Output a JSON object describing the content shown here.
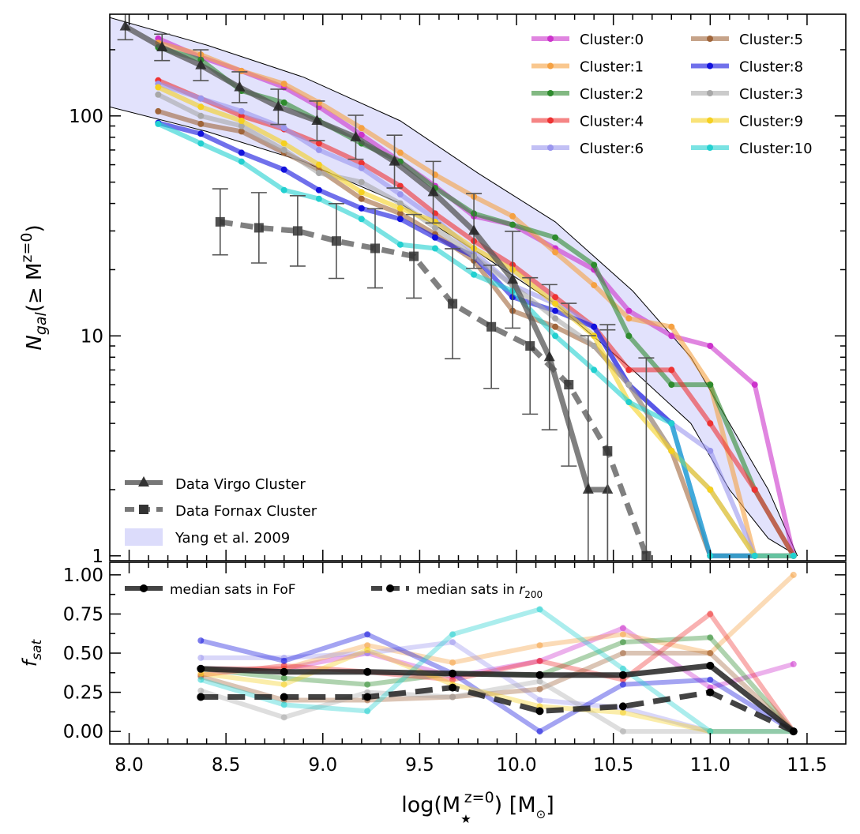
{
  "figure": {
    "shared_xlabel_prefix": "log(M",
    "shared_xlabel_super": "z=0",
    "shared_xlabel_unit": ") [M",
    "shared_xlabel_unit_end": "]"
  },
  "chart_data": [
    {
      "type": "line",
      "panel": "top",
      "ylabel_main": "N",
      "ylabel_sub": "gal",
      "ylabel_rest": "(≥ M",
      "ylabel_super": "z=0",
      "yscale": "log",
      "xlim": [
        7.9,
        11.7
      ],
      "ylim": [
        0.95,
        290
      ],
      "ytick_labels": [
        {
          "v": 1,
          "label": "1"
        },
        {
          "v": 10,
          "label": "10"
        },
        {
          "v": 100,
          "label": "100"
        }
      ],
      "series": [
        {
          "name": "Cluster:0",
          "color": "#cc33cc",
          "x": [
            8.15,
            8.37,
            8.58,
            8.8,
            8.98,
            9.2,
            9.4,
            9.58,
            9.78,
            9.98,
            10.2,
            10.4,
            10.58,
            10.8,
            11.0,
            11.23,
            11.43
          ],
          "y": [
            225,
            185,
            160,
            135,
            110,
            82,
            62,
            48,
            35,
            32,
            25,
            20,
            13,
            10,
            9,
            6,
            1
          ]
        },
        {
          "name": "Cluster:1",
          "color": "#f5a142",
          "x": [
            8.15,
            8.37,
            8.58,
            8.8,
            8.98,
            9.2,
            9.4,
            9.58,
            9.78,
            9.98,
            10.2,
            10.4,
            10.58,
            10.8,
            11.0,
            11.23,
            11.43
          ],
          "y": [
            215,
            190,
            160,
            140,
            115,
            88,
            68,
            54,
            43,
            35,
            24,
            17,
            12,
            11,
            6,
            1,
            1
          ]
        },
        {
          "name": "Cluster:2",
          "color": "#2e8b2e",
          "x": [
            8.15,
            8.37,
            8.58,
            8.8,
            8.98,
            9.2,
            9.4,
            9.58,
            9.78,
            9.98,
            10.2,
            10.4,
            10.58,
            10.8,
            11.0,
            11.23,
            11.43
          ],
          "y": [
            205,
            180,
            130,
            115,
            95,
            75,
            62,
            47,
            36,
            32,
            28,
            21,
            10,
            6,
            6,
            2,
            1
          ]
        },
        {
          "name": "Cluster:4",
          "color": "#ee3333",
          "x": [
            8.15,
            8.37,
            8.58,
            8.8,
            8.98,
            9.2,
            9.4,
            9.58,
            9.78,
            9.98,
            10.2,
            10.4,
            10.58,
            10.8,
            11.0,
            11.23,
            11.43
          ],
          "y": [
            145,
            120,
            100,
            87,
            75,
            61,
            48,
            36,
            27,
            21,
            15,
            11,
            7,
            7,
            4,
            2,
            1
          ]
        },
        {
          "name": "Cluster:6",
          "color": "#9a96ee",
          "x": [
            8.15,
            8.37,
            8.58,
            8.8,
            8.98,
            9.2,
            9.4,
            9.58,
            9.78,
            9.98,
            10.2,
            10.4,
            10.58,
            10.8,
            11.0,
            11.23,
            11.43
          ],
          "y": [
            140,
            120,
            105,
            88,
            70,
            58,
            44,
            34,
            24,
            17,
            14,
            11,
            6,
            4,
            3,
            1,
            1
          ]
        },
        {
          "name": "Cluster:5",
          "color": "#a0653a",
          "x": [
            8.15,
            8.37,
            8.58,
            8.8,
            8.98,
            9.2,
            9.4,
            9.58,
            9.78,
            9.98,
            10.2,
            10.4,
            10.58,
            10.8,
            11.0,
            11.23,
            11.43
          ],
          "y": [
            105,
            92,
            85,
            68,
            57,
            42,
            36,
            29,
            22,
            13,
            11,
            9,
            6,
            3,
            1,
            1,
            1
          ]
        },
        {
          "name": "Cluster:8",
          "color": "#1111dd",
          "x": [
            8.15,
            8.37,
            8.58,
            8.8,
            8.98,
            9.2,
            9.4,
            9.58,
            9.78,
            9.98,
            10.2,
            10.4,
            10.58,
            10.8,
            11.0,
            11.23,
            11.43
          ],
          "y": [
            93,
            83,
            68,
            57,
            46,
            38,
            34,
            28,
            23,
            15,
            13,
            11,
            6,
            4,
            1,
            1,
            1
          ]
        },
        {
          "name": "Cluster:3",
          "color": "#a8a8a8",
          "x": [
            8.15,
            8.37,
            8.58,
            8.8,
            8.98,
            9.2,
            9.4,
            9.58,
            9.78,
            9.98,
            10.2,
            10.4,
            10.58,
            10.8,
            11.0,
            11.23,
            11.43
          ],
          "y": [
            125,
            100,
            90,
            70,
            55,
            50,
            40,
            31,
            23,
            17,
            12,
            9,
            6,
            3,
            2,
            1,
            1
          ]
        },
        {
          "name": "Cluster:9",
          "color": "#f5d020",
          "x": [
            8.15,
            8.37,
            8.58,
            8.8,
            8.98,
            9.2,
            9.4,
            9.58,
            9.78,
            9.98,
            10.2,
            10.4,
            10.58,
            10.8,
            11.0,
            11.23,
            11.43
          ],
          "y": [
            135,
            110,
            95,
            75,
            60,
            45,
            38,
            33,
            25,
            20,
            14,
            10,
            5,
            3,
            2,
            1,
            1
          ]
        },
        {
          "name": "Cluster:10",
          "color": "#22d0d0",
          "x": [
            8.15,
            8.37,
            8.58,
            8.8,
            8.98,
            9.2,
            9.4,
            9.58,
            9.78,
            9.98,
            10.2,
            10.4,
            10.58,
            10.8,
            11.0,
            11.23,
            11.43
          ],
          "y": [
            92,
            75,
            62,
            46,
            42,
            34,
            26,
            25,
            19,
            16,
            10,
            7,
            5,
            4,
            1,
            1,
            1
          ]
        }
      ],
      "virgo": {
        "name": "Data Virgo Cluster",
        "x": [
          7.98,
          8.17,
          8.37,
          8.57,
          8.77,
          8.97,
          9.17,
          9.37,
          9.57,
          9.78,
          9.98,
          10.17,
          10.37,
          10.47
        ],
        "y": [
          255,
          205,
          170,
          135,
          110,
          95,
          80,
          62,
          45,
          30,
          18,
          8,
          2,
          2
        ],
        "err": [
          0.06,
          0.06,
          0.07,
          0.07,
          0.08,
          0.09,
          0.1,
          0.12,
          0.14,
          0.17,
          0.22,
          0.33,
          0.7,
          0.75
        ]
      },
      "fornax": {
        "name": "Data Fornax Cluster",
        "x": [
          8.47,
          8.67,
          8.87,
          9.07,
          9.27,
          9.47,
          9.67,
          9.87,
          10.07,
          10.27,
          10.47,
          10.67
        ],
        "y": [
          33,
          31,
          30,
          27,
          25,
          23,
          14,
          11,
          9,
          6,
          3,
          1
        ],
        "err": [
          0.15,
          0.16,
          0.16,
          0.17,
          0.18,
          0.19,
          0.25,
          0.28,
          0.31,
          0.37,
          0.55,
          0.9
        ]
      },
      "yang": {
        "name": "Yang et al. 2009",
        "color": "#d0d0fa",
        "x": [
          7.9,
          8.4,
          8.9,
          9.4,
          9.8,
          10.2,
          10.6,
          10.9,
          11.1,
          11.3,
          11.45
        ],
        "y_upper": [
          280,
          210,
          150,
          95,
          55,
          33,
          16,
          8,
          4,
          2,
          1
        ],
        "y_lower": [
          110,
          85,
          62,
          40,
          24,
          14,
          7,
          4,
          2,
          1.2,
          1
        ]
      },
      "legend_labels": [
        "Data Virgo Cluster",
        "Data Fornax Cluster",
        "Yang et al. 2009"
      ],
      "cluster_legend_order": [
        "Cluster:0",
        "Cluster:5",
        "Cluster:1",
        "Cluster:8",
        "Cluster:2",
        "Cluster:3",
        "Cluster:4",
        "Cluster:9",
        "Cluster:6",
        "Cluster:10"
      ]
    },
    {
      "type": "line",
      "panel": "bottom",
      "ylabel_main": "f",
      "ylabel_sub": "sat",
      "xlim": [
        7.9,
        11.7
      ],
      "ylim": [
        -0.08,
        1.08
      ],
      "xtick_labels": [
        "8.0",
        "8.5",
        "9.0",
        "9.5",
        "10.0",
        "10.5",
        "11.0",
        "11.5"
      ],
      "ytick_labels": [
        "0.00",
        "0.25",
        "0.50",
        "0.75",
        "1.00"
      ],
      "x": [
        8.37,
        8.8,
        9.23,
        9.67,
        10.12,
        10.55,
        11.0,
        11.43
      ],
      "series": [
        {
          "name": "Cluster:0",
          "color": "#cc33cc",
          "values": [
            0.4,
            0.4,
            0.5,
            0.35,
            0.45,
            0.66,
            0.28,
            0.43
          ]
        },
        {
          "name": "Cluster:1",
          "color": "#f5a142",
          "values": [
            0.4,
            0.4,
            0.55,
            0.44,
            0.55,
            0.62,
            0.5,
            1.0
          ]
        },
        {
          "name": "Cluster:2",
          "color": "#2e8b2e",
          "values": [
            0.4,
            0.34,
            0.3,
            0.37,
            0.36,
            0.57,
            0.6,
            0.0
          ]
        },
        {
          "name": "Cluster:4",
          "color": "#ee3333",
          "values": [
            0.36,
            0.42,
            0.38,
            0.33,
            0.45,
            0.33,
            0.75,
            0.0
          ]
        },
        {
          "name": "Cluster:6",
          "color": "#9a96ee",
          "values": [
            0.47,
            0.47,
            0.5,
            0.57,
            0.2,
            0.15,
            0.0,
            0.0
          ]
        },
        {
          "name": "Cluster:5",
          "color": "#a0653a",
          "values": [
            0.35,
            0.2,
            0.2,
            0.22,
            0.27,
            0.5,
            0.5,
            0.0
          ]
        },
        {
          "name": "Cluster:8",
          "color": "#1111dd",
          "values": [
            0.58,
            0.45,
            0.62,
            0.37,
            0.0,
            0.3,
            0.33,
            0.0
          ]
        },
        {
          "name": "Cluster:3",
          "color": "#a8a8a8",
          "values": [
            0.26,
            0.09,
            0.25,
            0.22,
            0.32,
            0.0,
            0.0,
            0.0
          ]
        },
        {
          "name": "Cluster:9",
          "color": "#f5d020",
          "values": [
            0.37,
            0.3,
            0.52,
            0.3,
            0.16,
            0.12,
            0.0,
            0.0
          ]
        },
        {
          "name": "Cluster:10",
          "color": "#22d0d0",
          "values": [
            0.33,
            0.17,
            0.13,
            0.62,
            0.78,
            0.4,
            0.0,
            0.0
          ]
        }
      ],
      "median_fof": {
        "name": "median sats in FoF",
        "values": [
          0.4,
          0.38,
          0.38,
          0.37,
          0.36,
          0.36,
          0.42,
          0.0
        ]
      },
      "median_r200": {
        "name": "median sats in ",
        "name_sub": "200",
        "values": [
          0.22,
          0.22,
          0.22,
          0.28,
          0.13,
          0.16,
          0.25,
          0.0
        ]
      }
    }
  ]
}
